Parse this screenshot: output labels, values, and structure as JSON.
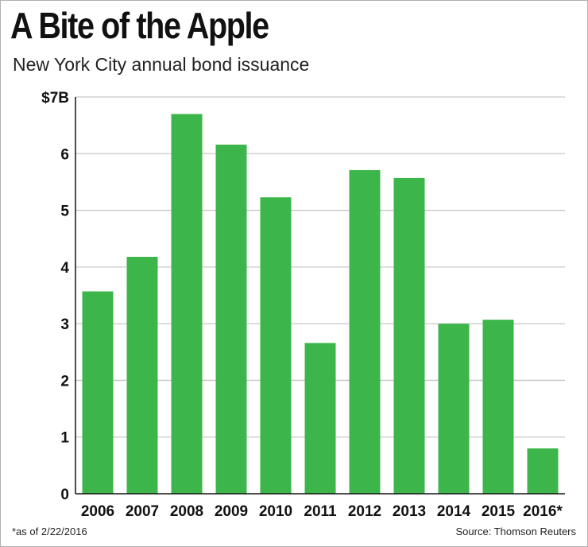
{
  "chart_data": {
    "type": "bar",
    "title": "A Bite of the Apple",
    "subtitle": "New York City annual bond issuance",
    "categories": [
      "2006",
      "2007",
      "2008",
      "2009",
      "2010",
      "2011",
      "2012",
      "2013",
      "2014",
      "2015",
      "2016*"
    ],
    "values": [
      3.57,
      4.18,
      6.7,
      6.16,
      5.23,
      2.66,
      5.71,
      5.57,
      3.0,
      3.07,
      0.8
    ],
    "ylim": [
      0,
      7
    ],
    "yticks": [
      {
        "value": 0,
        "label": "0"
      },
      {
        "value": 1,
        "label": "1"
      },
      {
        "value": 2,
        "label": "2"
      },
      {
        "value": 3,
        "label": "3"
      },
      {
        "value": 4,
        "label": "4"
      },
      {
        "value": 5,
        "label": "5"
      },
      {
        "value": 6,
        "label": "6"
      },
      {
        "value": 7,
        "label": "$7B"
      }
    ],
    "grid": true,
    "bar_color": "#3cb64b",
    "xlabel": "",
    "ylabel": ""
  },
  "footnote": "*as of 2/22/2016",
  "source": "Source: Thomson Reuters"
}
